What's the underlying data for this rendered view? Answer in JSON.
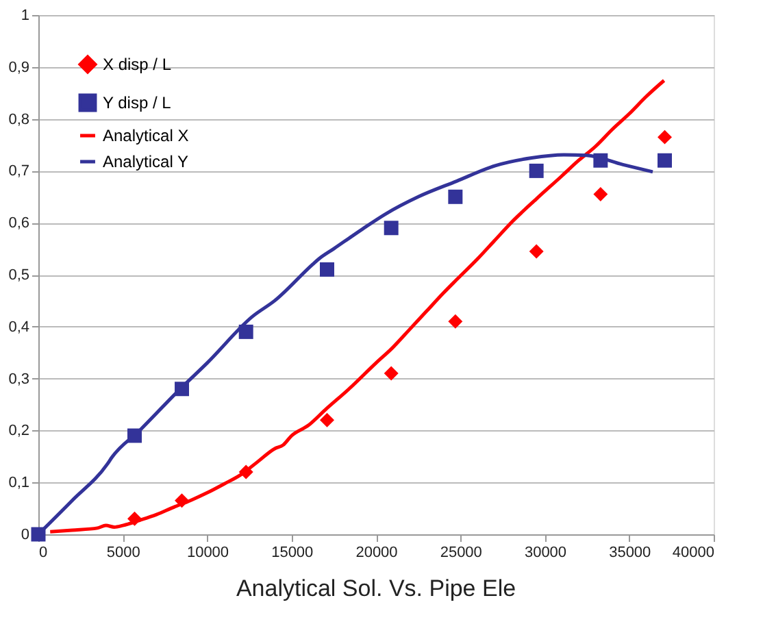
{
  "chart_data": {
    "type": "scatter",
    "title": "Analytical Sol. Vs. Pipe Ele",
    "xlim": [
      0,
      40000
    ],
    "xticks": [
      0,
      5000,
      10000,
      15000,
      20000,
      25000,
      30000,
      35000,
      40000
    ],
    "ylim": [
      0,
      1
    ],
    "yticks": [
      0,
      {
        "value": 0.1,
        "label": "0,1"
      },
      {
        "value": 0.2,
        "label": "0,2"
      },
      {
        "value": 0.3,
        "label": "0,3"
      },
      {
        "value": 0.4,
        "label": "0,4"
      },
      {
        "value": 0.5,
        "label": "0,5"
      },
      {
        "value": 0.6,
        "label": "0,6"
      },
      {
        "value": 0.7,
        "label": "0,7"
      },
      {
        "value": 0.8,
        "label": "0,8"
      },
      {
        "value": 0.9,
        "label": "0,9"
      },
      1
    ],
    "grid": "y",
    "legend": "top left",
    "series": [
      {
        "name": "X disp / L",
        "marker": "diamond",
        "color": "#ff0000",
        "x": [
          5700,
          8500,
          12300,
          17100,
          20900,
          24700,
          29500,
          33300,
          37100
        ],
        "values": [
          0.03,
          0.065,
          0.12,
          0.22,
          0.31,
          0.41,
          0.545,
          0.655,
          0.765
        ]
      },
      {
        "name": "Y disp / L",
        "marker": "square",
        "color": "#333399",
        "x": [
          0,
          5700,
          8500,
          12300,
          17100,
          20900,
          24700,
          29500,
          33300,
          37100
        ],
        "values": [
          0,
          0.19,
          0.28,
          0.39,
          0.51,
          0.59,
          0.65,
          0.7,
          0.72,
          0.72
        ]
      },
      {
        "name": "Analytical X",
        "type": "line",
        "marker": "none",
        "color": "#ff0000",
        "x": [
          700,
          2000,
          3500,
          4000,
          4500,
          5000,
          6000,
          7000,
          8000,
          9000,
          10000,
          11000,
          12000,
          13000,
          14000,
          14500,
          15000,
          16000,
          17000,
          18400,
          20000,
          21000,
          22000,
          23000,
          24000,
          24760,
          26000,
          27000,
          28000,
          29500,
          31000,
          32000,
          33000,
          34000,
          35000,
          36000,
          37060
        ],
        "values": [
          0.005,
          0.008,
          0.012,
          0.017,
          0.014,
          0.017,
          0.027,
          0.038,
          0.052,
          0.065,
          0.08,
          0.097,
          0.115,
          0.14,
          0.165,
          0.172,
          0.19,
          0.21,
          0.24,
          0.28,
          0.33,
          0.36,
          0.395,
          0.43,
          0.465,
          0.49,
          0.53,
          0.565,
          0.6,
          0.646,
          0.69,
          0.72,
          0.747,
          0.78,
          0.81,
          0.843,
          0.874
        ]
      },
      {
        "name": "Analytical Y",
        "type": "line",
        "marker": "none",
        "color": "#333399",
        "x": [
          0,
          2000,
          4080,
          4350,
          6000,
          8400,
          10000,
          12700,
          14000,
          16250,
          16600,
          17500,
          19200,
          20570,
          22500,
          24760,
          27060,
          29220,
          31120,
          32470,
          34630,
          36390
        ],
        "values": [
          0,
          0.065,
          0.135,
          0.148,
          0.2,
          0.28,
          0.33,
          0.42,
          0.45,
          0.52,
          0.53,
          0.55,
          0.588,
          0.617,
          0.65,
          0.68,
          0.71,
          0.725,
          0.731,
          0.73,
          0.712,
          0.698
        ]
      }
    ]
  }
}
